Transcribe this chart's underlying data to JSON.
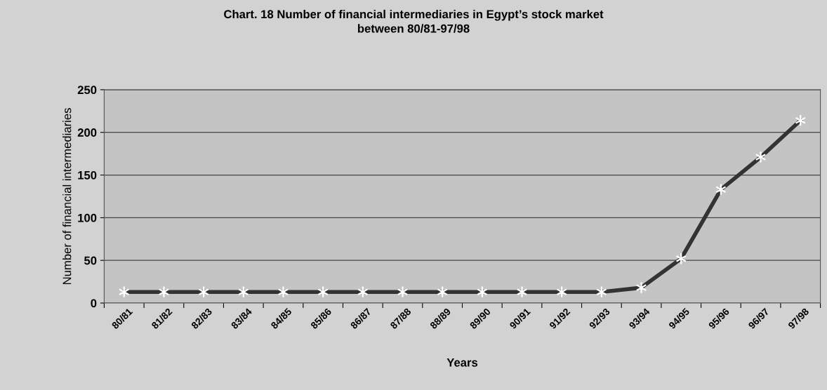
{
  "chart_data": {
    "type": "line",
    "title": "Chart. 18 Number of financial intermediaries in Egypt’s stock market\nbetween 80/81-97/98",
    "xlabel": "Years",
    "ylabel": "Number of financial intermediaries",
    "categories": [
      "80/81",
      "81/82",
      "82/83",
      "83/84",
      "84/85",
      "85/86",
      "86/87",
      "87/88",
      "88/89",
      "89/90",
      "90/91",
      "91/92",
      "92/93",
      "93/94",
      "94/95",
      "95/96",
      "96/97",
      "97/98"
    ],
    "series": [
      {
        "color": "#333333",
        "values": [
          13,
          13,
          13,
          13,
          13,
          13,
          13,
          13,
          13,
          13,
          13,
          13,
          13,
          18,
          52,
          133,
          171,
          214
        ]
      }
    ],
    "ylim": [
      0,
      250
    ],
    "yticks": [
      0,
      50,
      100,
      150,
      200,
      250
    ],
    "grid": "y",
    "marker": "cross",
    "line_style": "solid",
    "legend": false
  }
}
